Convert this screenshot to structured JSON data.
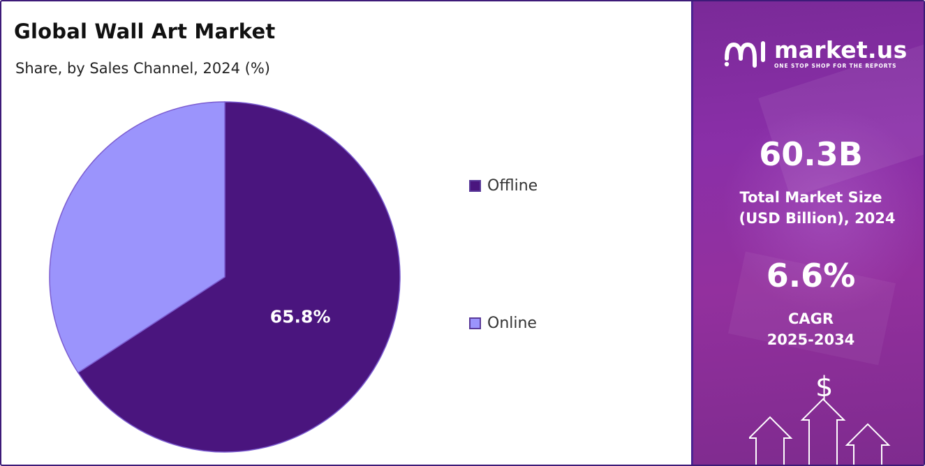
{
  "title": "Global Wall Art Market",
  "subtitle": "Share, by Sales Channel, 2024 (%)",
  "chart_data": {
    "type": "pie",
    "categories": [
      "Offline",
      "Online"
    ],
    "values": [
      65.8,
      34.2
    ],
    "data_labels": [
      "65.8%",
      ""
    ],
    "colors": [
      "#4a157e",
      "#9b94fc"
    ],
    "legend_position": "right",
    "title": "Global Wall Art Market",
    "subtitle": "Share, by Sales Channel, 2024 (%)"
  },
  "legend": [
    {
      "label": "Offline",
      "color": "#4a157e"
    },
    {
      "label": "Online",
      "color": "#9b94fc"
    }
  ],
  "side_panel": {
    "brand_name": "market.us",
    "brand_tagline": "ONE STOP SHOP FOR THE REPORTS",
    "market_size_value": "60.3B",
    "market_size_label_line1": "Total Market Size",
    "market_size_label_line2": "(USD Billion), 2024",
    "cagr_value": "6.6%",
    "cagr_label_line1": "CAGR",
    "cagr_label_line2": "2025-2034",
    "dollar_symbol": "$",
    "panel_color": "#8a2fa8"
  }
}
